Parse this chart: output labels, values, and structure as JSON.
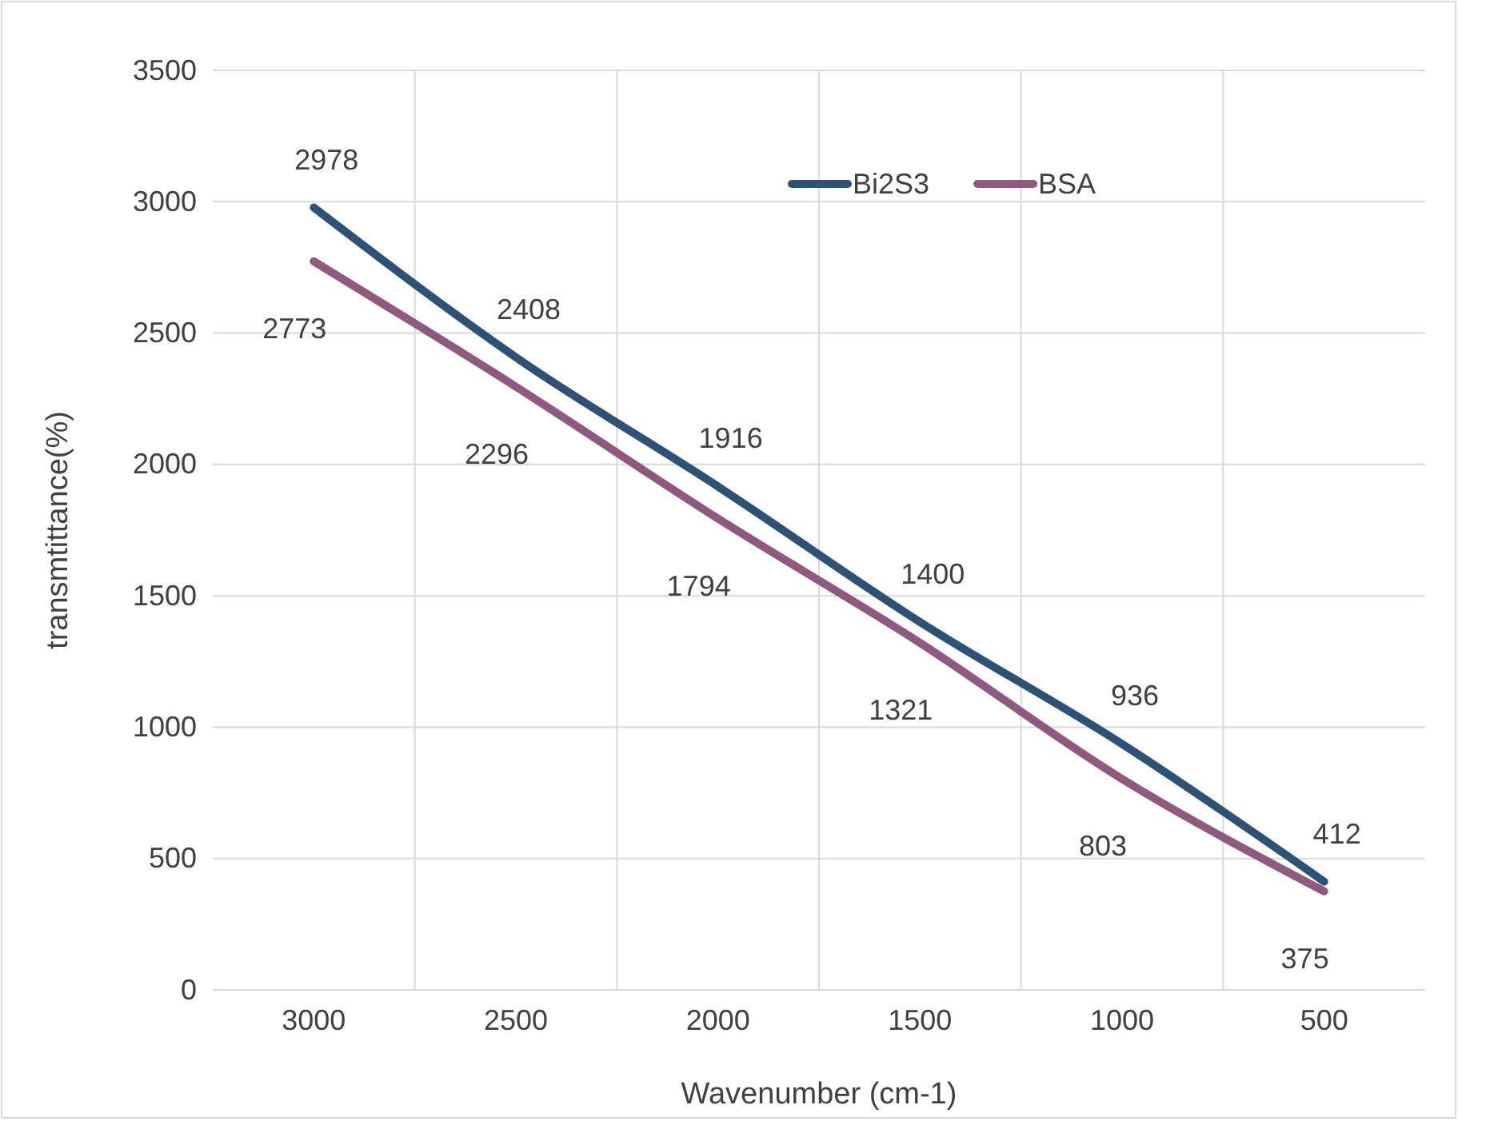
{
  "chart_data": {
    "type": "line",
    "xlabel": "Wavenumber (cm-1)",
    "ylabel": "transmtittance(%)",
    "categories": [
      "3000",
      "2500",
      "2000",
      "1500",
      "1000",
      "500"
    ],
    "series": [
      {
        "name": "Bi2S3",
        "color": "#2e5275",
        "values": [
          2978,
          2408,
          1916,
          1400,
          936,
          412
        ]
      },
      {
        "name": "BSA",
        "color": "#8f5a7d",
        "values": [
          2773,
          2296,
          1794,
          1321,
          803,
          375
        ]
      }
    ],
    "ylim": [
      0,
      3500
    ],
    "yticks": [
      0,
      500,
      1000,
      1500,
      2000,
      2500,
      3000,
      3500
    ],
    "grid": true,
    "legend": "top right",
    "data_labels": true,
    "marker": "none",
    "line_style": "solid"
  }
}
